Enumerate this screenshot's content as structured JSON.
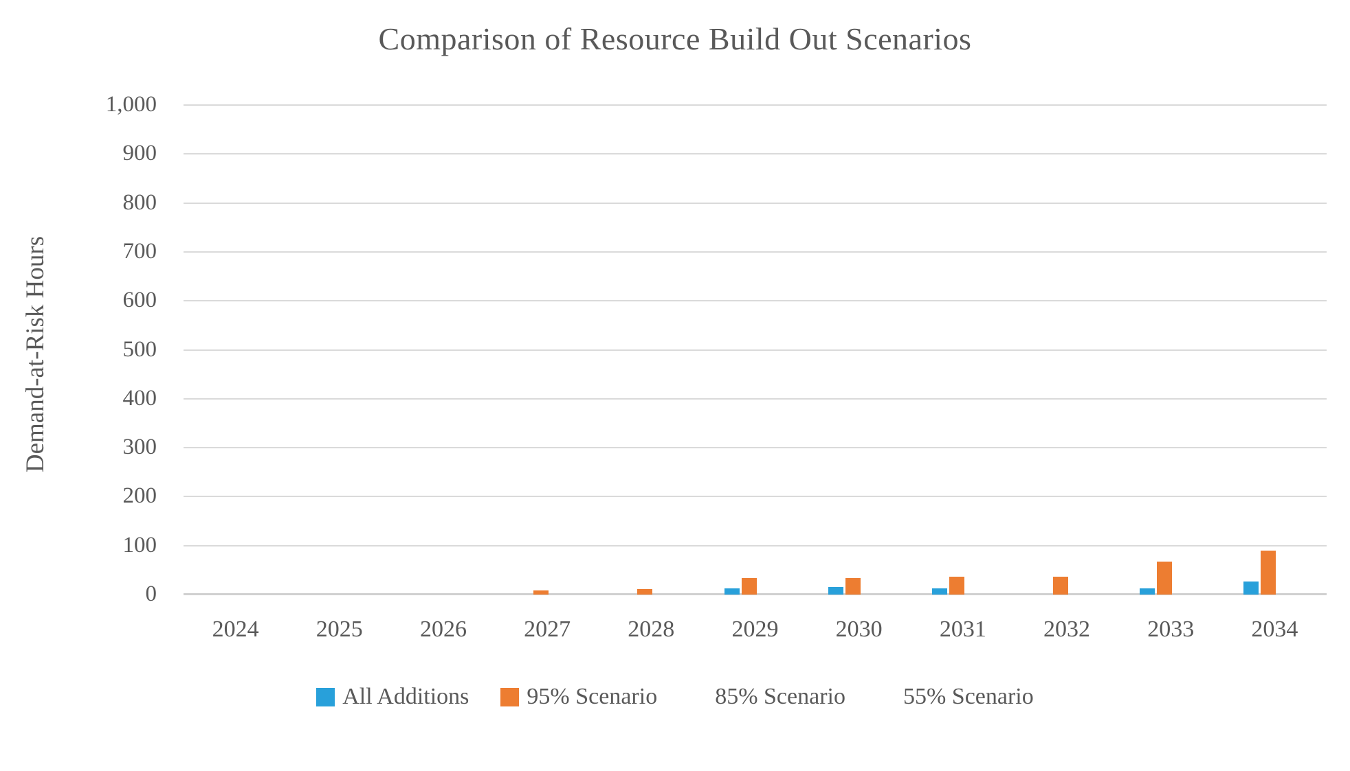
{
  "chart": {
    "text_color": "#595959",
    "gridline_color": "#dadada",
    "background": "#ffffff"
  },
  "chart_data": {
    "type": "bar",
    "title": "Comparison of Resource Build Out Scenarios",
    "xlabel": "",
    "ylabel": "Demand-at-Risk Hours",
    "ylim": [
      0,
      1000
    ],
    "ytick_step": 100,
    "y_tick_labels": [
      "0",
      "100",
      "200",
      "300",
      "400",
      "500",
      "600",
      "700",
      "800",
      "900",
      "1,000"
    ],
    "grid": true,
    "legend_position": "bottom",
    "categories": [
      "2024",
      "2025",
      "2026",
      "2027",
      "2028",
      "2029",
      "2030",
      "2031",
      "2032",
      "2033",
      "2034"
    ],
    "series": [
      {
        "name": "All Additions",
        "color": "#28a0da",
        "values": [
          0,
          0,
          0,
          0,
          0,
          13,
          15,
          12,
          0,
          12,
          26
        ]
      },
      {
        "name": "95% Scenario",
        "color": "#ed7d31",
        "values": [
          0,
          0,
          0,
          8,
          11,
          33,
          34,
          37,
          36,
          68,
          90
        ]
      },
      {
        "name": "85% Scenario",
        "color": "#ffffff",
        "values": [
          0,
          0,
          0,
          0,
          0,
          0,
          0,
          0,
          0,
          0,
          0
        ]
      },
      {
        "name": "55% Scenario",
        "color": "#ffffff",
        "values": [
          0,
          0,
          0,
          0,
          0,
          0,
          0,
          0,
          0,
          0,
          0
        ]
      }
    ]
  }
}
